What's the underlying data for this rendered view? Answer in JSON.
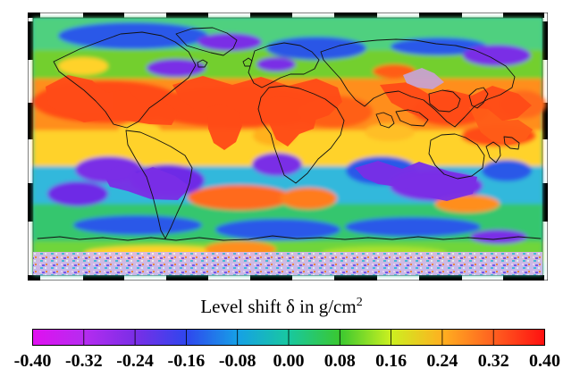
{
  "legend": {
    "title_prefix": "Level shift",
    "symbol": "δ",
    "title_mid": "in g/cm",
    "title_exp": "2",
    "colorbar": {
      "min": -0.4,
      "max": 0.4,
      "ticks": [
        "-0.40",
        "-0.32",
        "-0.24",
        "-0.16",
        "-0.08",
        "0.00",
        "0.08",
        "0.16",
        "0.24",
        "0.32",
        "0.40"
      ],
      "colors": [
        "#e010f0",
        "#b62cf0",
        "#7a2ee6",
        "#2f46ee",
        "#16a0e6",
        "#18c8a0",
        "#3ac830",
        "#ccf020",
        "#ffb020",
        "#ff6020",
        "#ff1010"
      ]
    }
  },
  "map": {
    "projection": "equirectangular",
    "frame_style": "alternating black and white border",
    "field_colors": {
      "ocean_base": "#36c2a4",
      "positive_strong": "#ff4b17",
      "positive_medium": "#ff8e1f",
      "positive_low": "#ffd22a",
      "slight_positive": "#94dc2e",
      "neutral": "#4fd07f",
      "negative_low": "#1cb4df",
      "negative_medium": "#2958e8",
      "negative_strong": "#7a2ee6",
      "ice_no_data": "#c9a2cf",
      "antarctic_noise": "#e7c1f2"
    }
  }
}
